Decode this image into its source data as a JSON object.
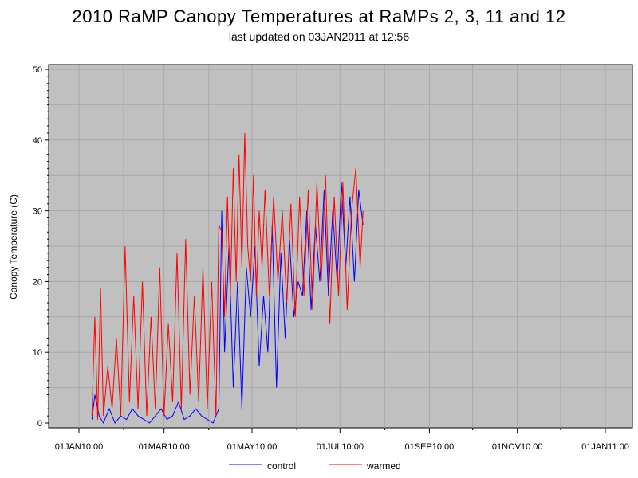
{
  "chart_data": {
    "type": "line",
    "title": "2010 RaMP Canopy Temperatures at RaMPs 2, 3, 11 and 12",
    "subtitle": "last updated on 03JAN2011 at 12:56",
    "xlabel": "",
    "ylabel": "Canopy Temperature (C)",
    "ylim": [
      0,
      50
    ],
    "yticks": [
      0,
      10,
      20,
      30,
      40,
      50
    ],
    "xlim": [
      "2010-01-01",
      "2011-01-01"
    ],
    "xtick_labels": [
      "01JAN10:00",
      "01MAR10:00",
      "01MAY10:00",
      "01JUL10:00",
      "01SEP10:00",
      "01NOV10:00",
      "01JAN11:00"
    ],
    "grid": true,
    "legend_position": "bottom",
    "series": [
      {
        "name": "control",
        "color": "#0000ff",
        "x": [
          "2010-01-10",
          "2010-01-12",
          "2010-01-15",
          "2010-01-18",
          "2010-01-22",
          "2010-01-26",
          "2010-01-30",
          "2010-02-03",
          "2010-02-07",
          "2010-02-11",
          "2010-02-15",
          "2010-02-19",
          "2010-02-23",
          "2010-02-27",
          "2010-03-03",
          "2010-03-07",
          "2010-03-11",
          "2010-03-15",
          "2010-03-19",
          "2010-03-23",
          "2010-03-27",
          "2010-03-31",
          "2010-04-04",
          "2010-04-08",
          "2010-04-10",
          "2010-04-12",
          "2010-04-15",
          "2010-04-18",
          "2010-04-21",
          "2010-04-24",
          "2010-04-27",
          "2010-04-30",
          "2010-05-03",
          "2010-05-06",
          "2010-05-09",
          "2010-05-12",
          "2010-05-15",
          "2010-05-18",
          "2010-05-21",
          "2010-05-24",
          "2010-05-27",
          "2010-05-30",
          "2010-06-02",
          "2010-06-05",
          "2010-06-08",
          "2010-06-11",
          "2010-06-14",
          "2010-06-17",
          "2010-06-20",
          "2010-06-23",
          "2010-06-26",
          "2010-06-29",
          "2010-07-02",
          "2010-07-05",
          "2010-07-08",
          "2010-07-11",
          "2010-07-14",
          "2010-07-17"
        ],
        "values": [
          0.5,
          4,
          1,
          0,
          2,
          0,
          1,
          0.5,
          2,
          1,
          0.5,
          0,
          1,
          2,
          0.5,
          1,
          3,
          0.5,
          1,
          2,
          1,
          0.5,
          0,
          2,
          30,
          10,
          25,
          5,
          20,
          2,
          22,
          15,
          25,
          8,
          18,
          10,
          28,
          5,
          24,
          12,
          26,
          15,
          20,
          18,
          30,
          16,
          28,
          20,
          33,
          18,
          30,
          20,
          34,
          22,
          32,
          20,
          33,
          28
        ]
      },
      {
        "name": "warmed",
        "color": "#ff0000",
        "x": [
          "2010-01-10",
          "2010-01-12",
          "2010-01-14",
          "2010-01-16",
          "2010-01-18",
          "2010-01-21",
          "2010-01-24",
          "2010-01-27",
          "2010-01-30",
          "2010-02-02",
          "2010-02-05",
          "2010-02-08",
          "2010-02-11",
          "2010-02-14",
          "2010-02-17",
          "2010-02-20",
          "2010-02-23",
          "2010-02-26",
          "2010-03-01",
          "2010-03-04",
          "2010-03-07",
          "2010-03-10",
          "2010-03-13",
          "2010-03-16",
          "2010-03-19",
          "2010-03-22",
          "2010-03-25",
          "2010-03-28",
          "2010-03-31",
          "2010-04-03",
          "2010-04-06",
          "2010-04-08",
          "2010-04-10",
          "2010-04-12",
          "2010-04-14",
          "2010-04-16",
          "2010-04-18",
          "2010-04-20",
          "2010-04-22",
          "2010-04-24",
          "2010-04-26",
          "2010-04-28",
          "2010-04-30",
          "2010-05-02",
          "2010-05-04",
          "2010-05-06",
          "2010-05-08",
          "2010-05-10",
          "2010-05-13",
          "2010-05-16",
          "2010-05-19",
          "2010-05-22",
          "2010-05-25",
          "2010-05-28",
          "2010-05-31",
          "2010-06-03",
          "2010-06-06",
          "2010-06-09",
          "2010-06-12",
          "2010-06-15",
          "2010-06-18",
          "2010-06-21",
          "2010-06-24",
          "2010-06-27",
          "2010-06-30",
          "2010-07-03",
          "2010-07-06",
          "2010-07-09",
          "2010-07-12",
          "2010-07-15",
          "2010-07-17"
        ],
        "values": [
          1,
          15,
          0.5,
          19,
          1,
          8,
          2,
          12,
          1,
          25,
          3,
          18,
          2,
          20,
          1,
          15,
          2,
          22,
          1,
          14,
          3,
          24,
          2,
          26,
          4,
          18,
          3,
          22,
          2,
          20,
          1,
          28,
          27,
          15,
          32,
          18,
          36,
          20,
          38,
          22,
          41,
          25,
          20,
          35,
          18,
          30,
          22,
          33,
          18,
          32,
          20,
          30,
          17,
          31,
          15,
          32,
          18,
          33,
          16,
          34,
          20,
          35,
          14,
          32,
          18,
          34,
          16,
          30,
          36,
          22,
          30
        ]
      }
    ]
  }
}
